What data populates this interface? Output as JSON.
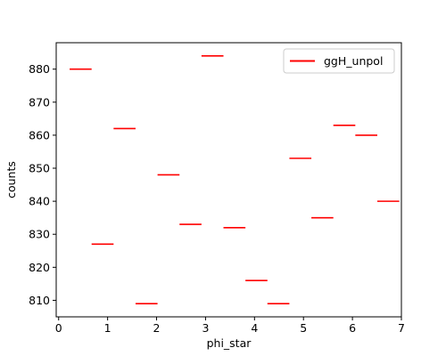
{
  "chart_data": {
    "type": "line",
    "style": "horizontal step segments (histogram-style bin markers)",
    "xlabel": "phi_star",
    "ylabel": "counts",
    "xlim": [
      -0.05,
      7.0
    ],
    "ylim": [
      805,
      888
    ],
    "x_ticks": [
      0,
      1,
      2,
      3,
      4,
      5,
      6,
      7
    ],
    "y_ticks": [
      810,
      820,
      830,
      840,
      850,
      860,
      870,
      880
    ],
    "grid": false,
    "legend_position": "top-right",
    "series": [
      {
        "name": "ggH_unpol",
        "color": "#ff0000",
        "bin_width": 0.4488,
        "bins": [
          {
            "x_start": 0.2244,
            "x_end": 0.6732,
            "y": 880
          },
          {
            "x_start": 0.6732,
            "x_end": 1.122,
            "y": 827
          },
          {
            "x_start": 1.122,
            "x_end": 1.5708,
            "y": 862
          },
          {
            "x_start": 1.5708,
            "x_end": 2.0196,
            "y": 809
          },
          {
            "x_start": 2.0196,
            "x_end": 2.4684,
            "y": 848
          },
          {
            "x_start": 2.4684,
            "x_end": 2.9172,
            "y": 833
          },
          {
            "x_start": 2.9172,
            "x_end": 3.366,
            "y": 884
          },
          {
            "x_start": 3.366,
            "x_end": 3.8148,
            "y": 832
          },
          {
            "x_start": 3.8148,
            "x_end": 4.2636,
            "y": 816
          },
          {
            "x_start": 4.2636,
            "x_end": 4.7124,
            "y": 809
          },
          {
            "x_start": 4.7124,
            "x_end": 5.1612,
            "y": 853
          },
          {
            "x_start": 5.1612,
            "x_end": 5.61,
            "y": 835
          },
          {
            "x_start": 5.61,
            "x_end": 6.0588,
            "y": 863
          },
          {
            "x_start": 6.0588,
            "x_end": 6.5076,
            "y": 860
          },
          {
            "x_start": 6.5076,
            "x_end": 6.9564,
            "y": 840
          }
        ]
      }
    ]
  }
}
